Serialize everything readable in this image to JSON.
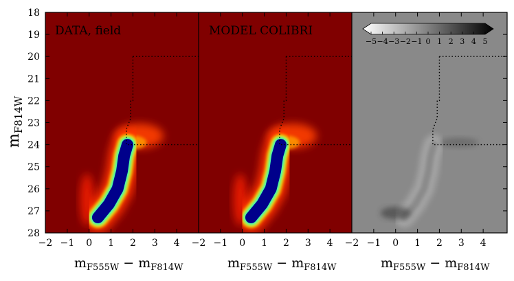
{
  "chart_data": {
    "type": "heatmap",
    "ylabel_main": "m",
    "ylabel_sub": "F814W",
    "xlabel_main1": "m",
    "xlabel_sub1": "F555W",
    "xlabel_minus": " − ",
    "xlabel_main2": "m",
    "xlabel_sub2": "F814W",
    "xlim": [
      -2,
      5
    ],
    "ylim": [
      28,
      18
    ],
    "xticks": [
      -2,
      -1,
      0,
      1,
      2,
      3,
      4
    ],
    "xticks_last_panel": [
      -2,
      -1,
      0,
      1,
      2,
      3,
      4
    ],
    "yticks": [
      18,
      19,
      20,
      21,
      22,
      23,
      24,
      25,
      26,
      27,
      28
    ],
    "panels": [
      {
        "title": "DATA, field",
        "kind": "density",
        "colormap": "jet"
      },
      {
        "title": "MODEL COLIBRI",
        "kind": "density",
        "colormap": "jet"
      },
      {
        "title": "",
        "kind": "residual",
        "colormap": "grey"
      }
    ],
    "colorbar": {
      "range": [
        -5,
        5
      ],
      "ticks": [
        "−5",
        "−4",
        "−3",
        "−2",
        "−1",
        "0",
        "1",
        "2",
        "3",
        "4",
        "5"
      ],
      "location": "top"
    },
    "selection_box": [
      [
        2.0,
        20.0
      ],
      [
        5.0,
        20.0
      ],
      [
        2.0,
        20.0
      ],
      [
        2.0,
        22.0
      ],
      [
        1.9,
        22.0
      ],
      [
        1.9,
        22.8
      ],
      [
        1.7,
        23.3
      ],
      [
        1.7,
        24.0
      ],
      [
        5.0,
        24.0
      ]
    ],
    "main_sequence_ridge": [
      [
        0.4,
        27.3
      ],
      [
        0.9,
        26.7
      ],
      [
        1.3,
        26.0
      ],
      [
        1.5,
        25.2
      ],
      [
        1.6,
        24.5
      ],
      [
        1.75,
        24.0
      ]
    ],
    "colors": {
      "background_density": "#800000",
      "core_density": "#00008b",
      "residual_background": "#898989"
    }
  }
}
